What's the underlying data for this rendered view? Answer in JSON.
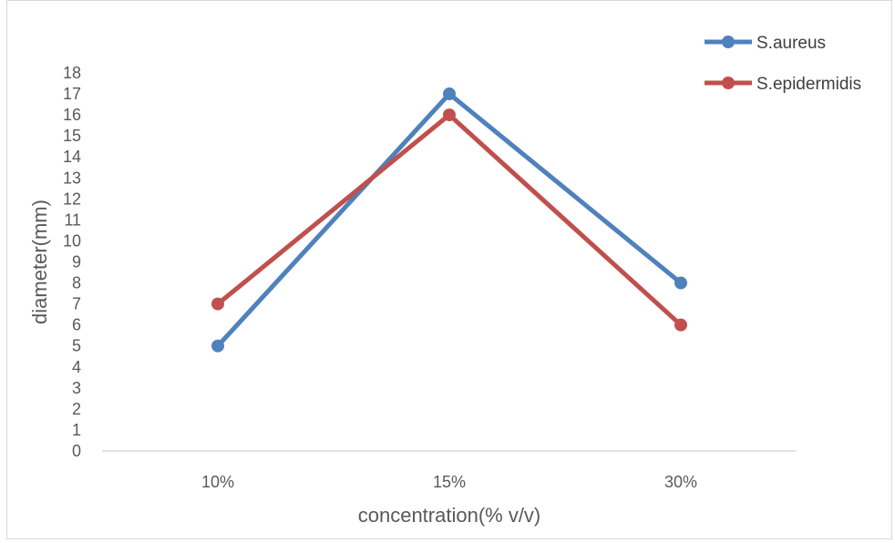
{
  "chart_data": {
    "type": "line",
    "title": "",
    "xlabel": "concentration(% v/v)",
    "ylabel": "diameter(mm)",
    "categories": [
      "10%",
      "15%",
      "30%"
    ],
    "ylim": [
      0,
      18
    ],
    "yticks": [
      0,
      1,
      2,
      3,
      4,
      5,
      6,
      7,
      8,
      9,
      10,
      11,
      12,
      13,
      14,
      15,
      16,
      17,
      18
    ],
    "grid": false,
    "legend_position": "top-right",
    "series": [
      {
        "name": "S.aureus",
        "color": "#4f81bd",
        "values": [
          5,
          17,
          8
        ]
      },
      {
        "name": "S.epidermidis",
        "color": "#c0504d",
        "values": [
          7,
          16,
          6
        ]
      }
    ]
  }
}
